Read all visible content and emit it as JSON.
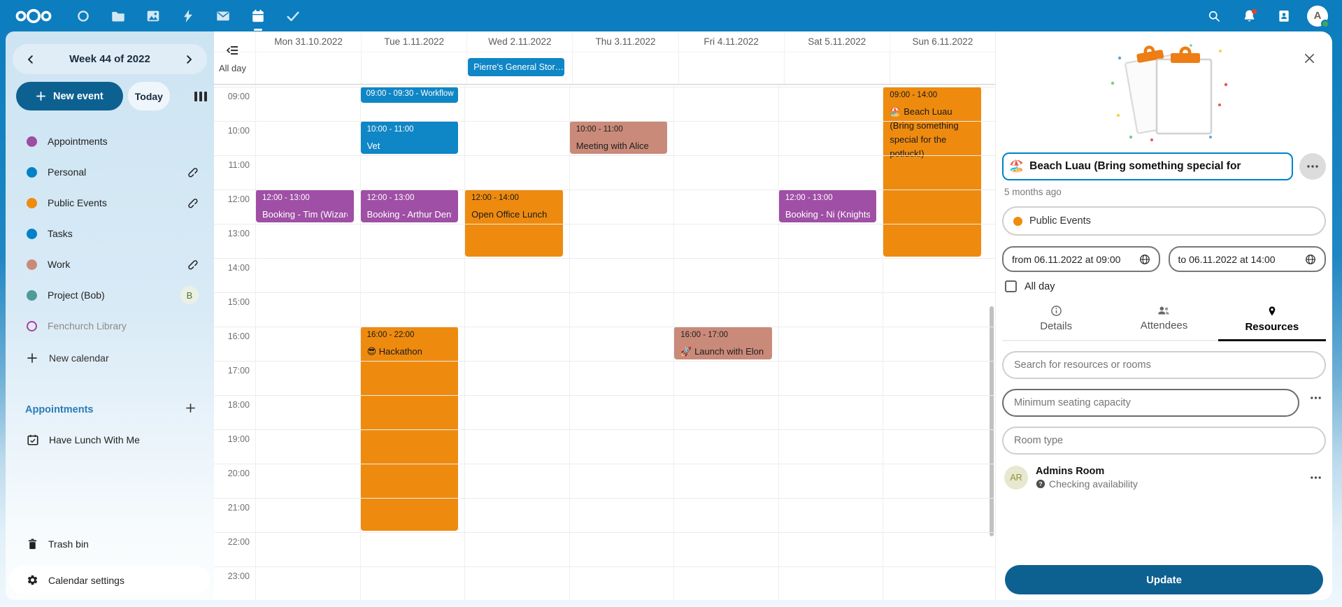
{
  "colors": {
    "header": "#0c7dbe",
    "primary_button": "#0d6191",
    "accent": "#0082c9",
    "event_blue": "#0f86c5",
    "event_purple": "#9f4fa5",
    "event_orange": "#ee8b0f",
    "event_salmon": "#ca8a7a",
    "notification_dot": "#e0442c",
    "online_status": "#3fa857"
  },
  "topbar": {
    "apps": [
      "nextcloud-logo",
      "dashboard-icon",
      "files-icon",
      "photos-icon",
      "activity-icon",
      "mail-icon",
      "calendar-icon",
      "tasks-icon"
    ],
    "active_app": "calendar",
    "right": [
      "search-icon",
      "notifications-bell-icon",
      "contacts-icon",
      "avatar"
    ],
    "avatar_letter": "A"
  },
  "sidebar": {
    "week_title": "Week 44 of 2022",
    "new_event_label": "New event",
    "today_label": "Today",
    "calendars": [
      {
        "name": "Appointments",
        "color": "#9b4ea3"
      },
      {
        "name": "Personal",
        "color": "#0082c9",
        "shared": true
      },
      {
        "name": "Public Events",
        "color": "#ee8c0e",
        "shared": true
      },
      {
        "name": "Tasks",
        "color": "#0082c9"
      },
      {
        "name": "Work",
        "color": "#ca8a7a",
        "shared": true
      },
      {
        "name": "Project (Bob)",
        "color": "#4f9b9b",
        "badge": "B"
      },
      {
        "name": "Fenchurch Library",
        "color": "#ad3e9e",
        "outline": true,
        "muted": true
      }
    ],
    "new_calendar_label": "New calendar",
    "appointments_heading": "Appointments",
    "appointment_item": "Have Lunch With Me",
    "trash_label": "Trash bin",
    "settings_label": "Calendar settings"
  },
  "calendar": {
    "days": [
      "Mon 31.10.2022",
      "Tue 1.11.2022",
      "Wed 2.11.2022",
      "Thu 3.11.2022",
      "Fri 4.11.2022",
      "Sat 5.11.2022",
      "Sun 6.11.2022"
    ],
    "all_day_label": "All day",
    "times": [
      "09:00",
      "10:00",
      "11:00",
      "12:00",
      "13:00",
      "14:00",
      "15:00",
      "16:00",
      "17:00",
      "18:00",
      "19:00",
      "20:00",
      "21:00",
      "22:00",
      "23:00"
    ],
    "allday_event": {
      "day": 2,
      "title": "Pierre's General Stor…",
      "color": "blue"
    },
    "events": [
      {
        "day": 0,
        "time": "12:00 - 13:00",
        "title": "Booking - Tim (Wizard)",
        "color": "purple",
        "start": 12,
        "end": 13
      },
      {
        "day": 1,
        "time": "09:00 - 09:30 - Workflow",
        "title": "",
        "color": "blue",
        "start": 9,
        "end": 9.5,
        "compact": true
      },
      {
        "day": 1,
        "time": "10:00 - 11:00",
        "title": "Vet",
        "color": "blue",
        "start": 10,
        "end": 11
      },
      {
        "day": 1,
        "time": "12:00 - 13:00",
        "title": "Booking - Arthur Dent",
        "color": "purple",
        "start": 12,
        "end": 13
      },
      {
        "day": 1,
        "time": "16:00 - 22:00",
        "title": "😎 Hackathon",
        "color": "orange",
        "start": 16,
        "end": 22
      },
      {
        "day": 2,
        "time": "12:00 - 14:00",
        "title": "Open Office Lunch",
        "color": "orange",
        "start": 12,
        "end": 14
      },
      {
        "day": 3,
        "time": "10:00 - 11:00",
        "title": "Meeting with Alice",
        "color": "salmon",
        "start": 10,
        "end": 11
      },
      {
        "day": 4,
        "time": "16:00 - 17:00",
        "title": "🚀 Launch with Elon",
        "color": "salmon",
        "start": 16,
        "end": 17
      },
      {
        "day": 5,
        "time": "12:00 - 13:00",
        "title": "Booking - Ni (Knights",
        "color": "purple",
        "start": 12,
        "end": 13
      },
      {
        "day": 6,
        "time": "09:00 - 14:00",
        "title": "🏖️ Beach Luau (Bring something special for the potluck!)",
        "color": "orange",
        "start": 9,
        "end": 14,
        "wrap": true
      }
    ]
  },
  "panel": {
    "title_emoji": "🏖️",
    "title": "Beach Luau (Bring something special for",
    "modified": "5 months ago",
    "calendar_select": "Public Events",
    "from": "from 06.11.2022 at 09:00",
    "to": "to 06.11.2022 at 14:00",
    "all_day_label": "All day",
    "tabs": [
      {
        "label": "Details"
      },
      {
        "label": "Attendees"
      },
      {
        "label": "Resources",
        "active": true
      }
    ],
    "search_placeholder": "Search for resources or rooms",
    "seating_placeholder": "Minimum seating capacity",
    "room_type_placeholder": "Room type",
    "resource": {
      "initials": "AR",
      "name": "Admins Room",
      "status": "Checking availability"
    },
    "update_label": "Update"
  }
}
